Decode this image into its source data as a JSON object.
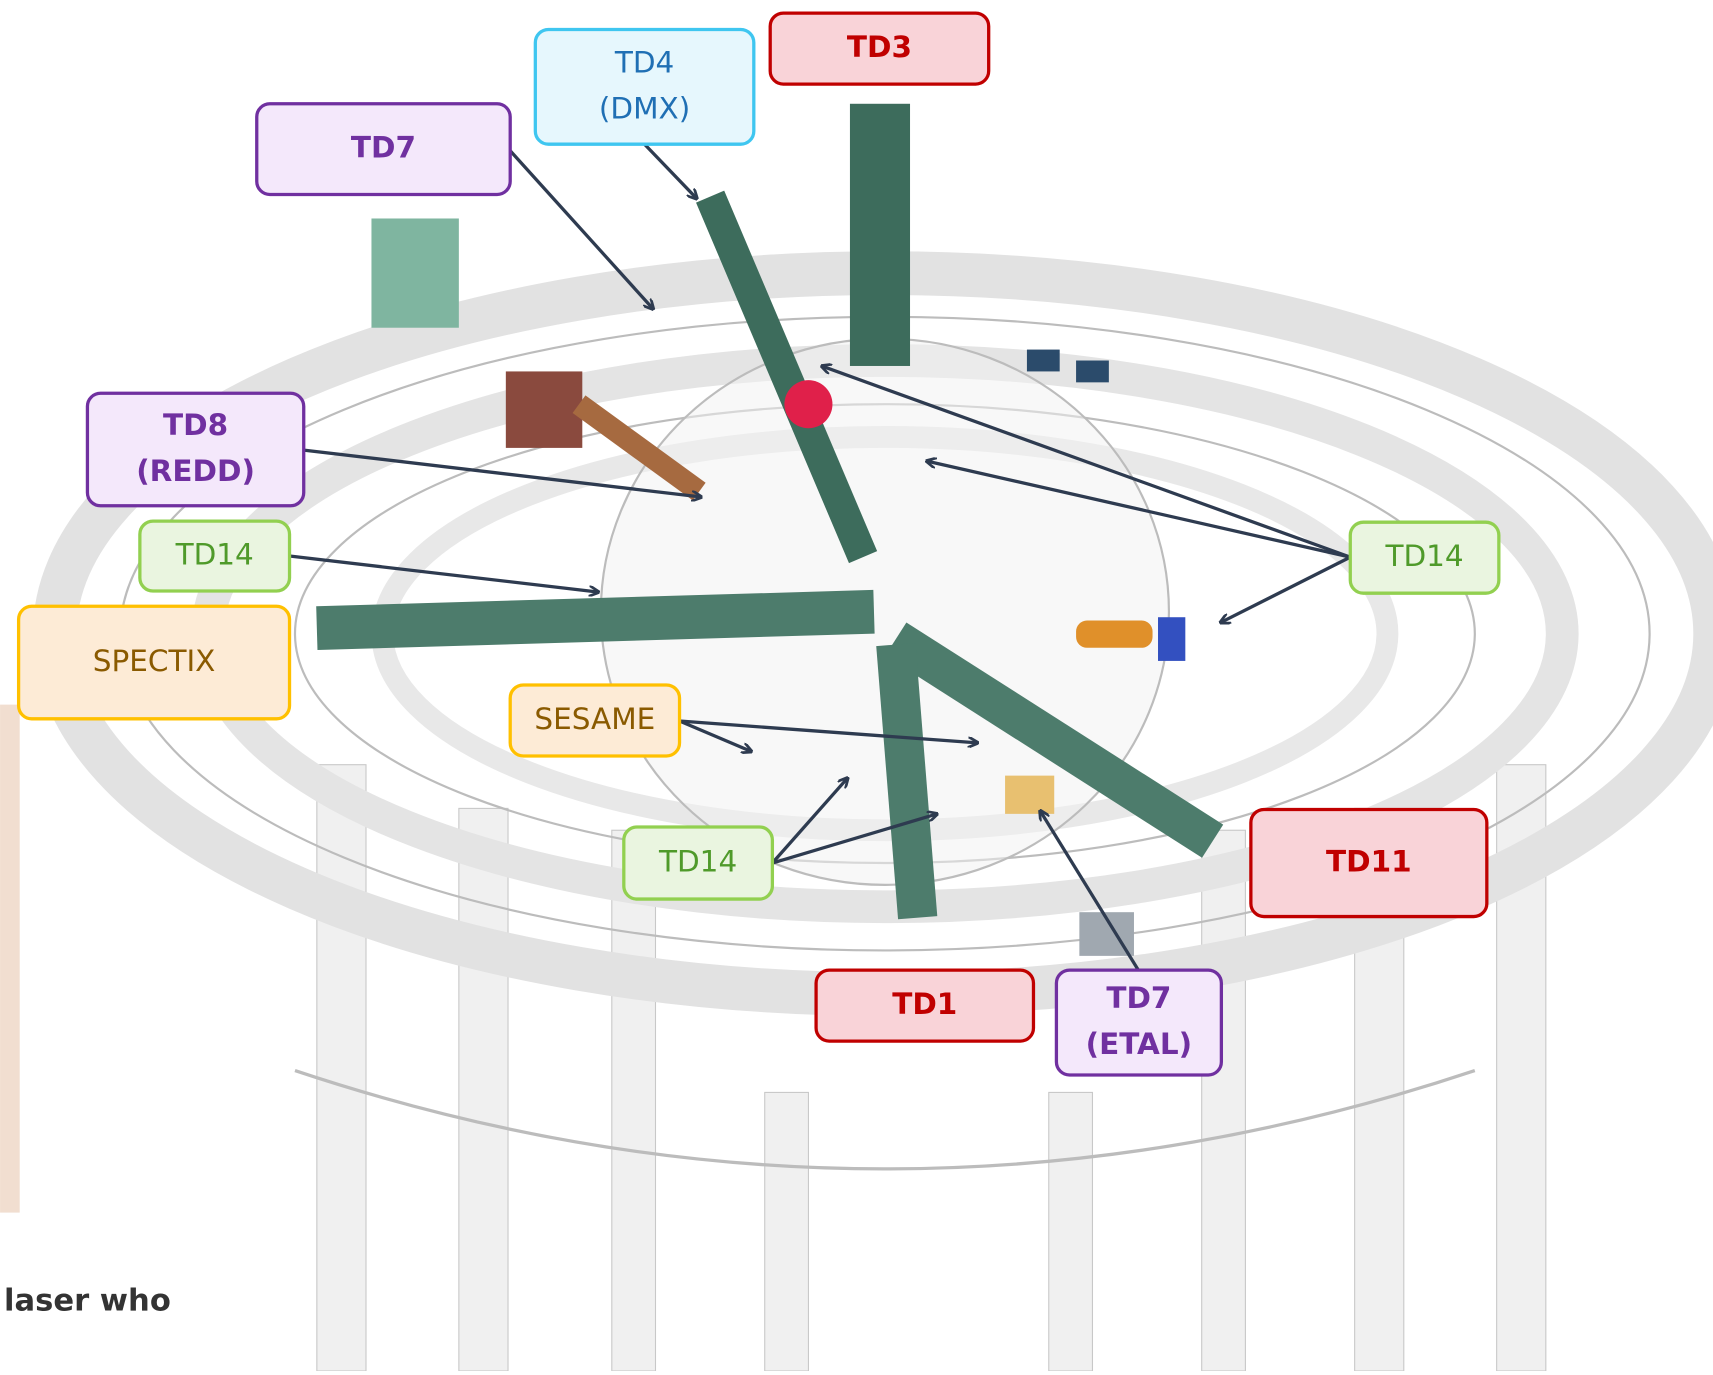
{
  "labels": [
    {
      "lines": [
        "TD3"
      ]
    },
    {
      "lines": [
        "TD4",
        "(DMX)"
      ]
    },
    {
      "lines": [
        "TD7"
      ]
    },
    {
      "lines": [
        "TD8",
        "(REDD)"
      ]
    },
    {
      "lines": [
        "TD14"
      ]
    },
    {
      "lines": [
        "SPECTIX"
      ]
    },
    {
      "lines": [
        "SESAME"
      ]
    },
    {
      "lines": [
        "TD14"
      ]
    },
    {
      "lines": [
        "TD14"
      ]
    },
    {
      "lines": [
        "TD1"
      ]
    },
    {
      "lines": [
        "TD7",
        "(ETAL)"
      ]
    },
    {
      "lines": [
        "TD11"
      ]
    }
  ],
  "footer_text": "laser who"
}
